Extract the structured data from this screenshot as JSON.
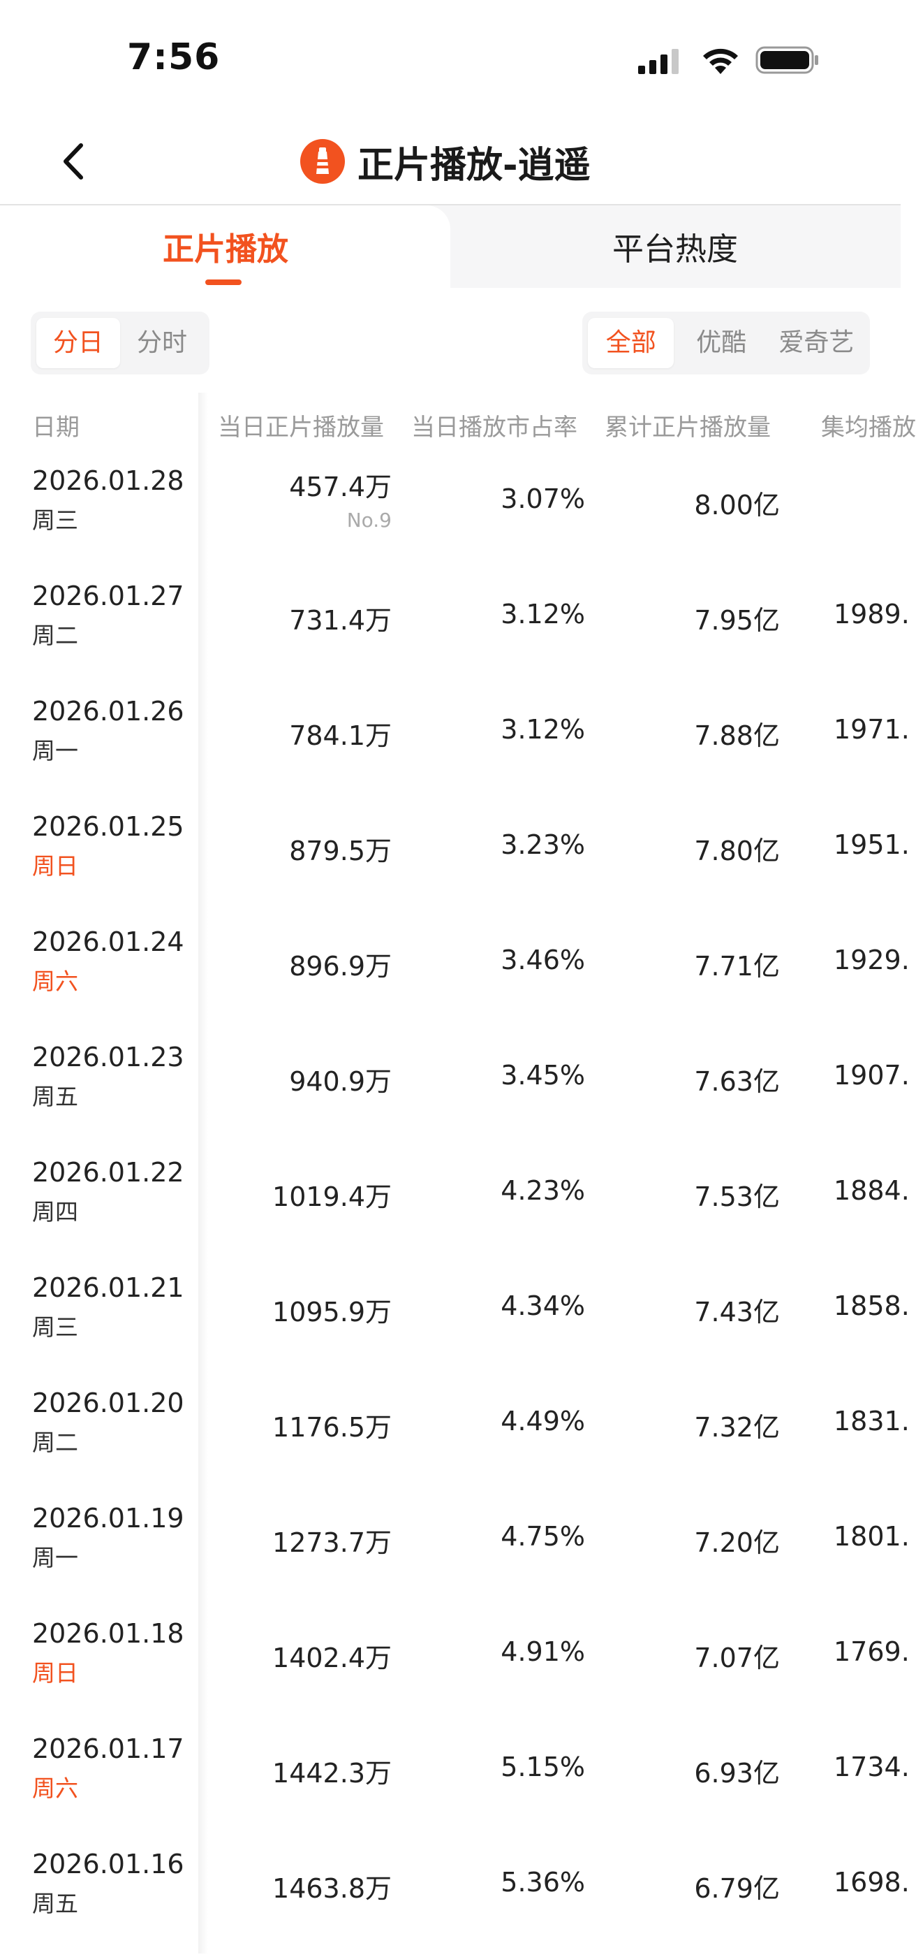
{
  "status_bar": {
    "time": "7:56"
  },
  "nav": {
    "title": "正片播放-逍遥",
    "back_icon": "chevron-left-icon",
    "logo_icon": "lighthouse-logo-icon"
  },
  "tabs": [
    {
      "label": "正片播放",
      "active": true
    },
    {
      "label": "平台热度",
      "active": false
    }
  ],
  "time_filter": [
    {
      "label": "分日",
      "active": true
    },
    {
      "label": "分时",
      "active": false
    }
  ],
  "platform_filter": [
    {
      "label": "全部",
      "active": true
    },
    {
      "label": "优酷",
      "active": false
    },
    {
      "label": "爱奇艺",
      "active": false
    }
  ],
  "colors": {
    "accent": "#f2521f",
    "text": "#222222",
    "muted": "#9a9a9a"
  },
  "table": {
    "headers": [
      "日期",
      "当日正片播放量",
      "当日播放市占率",
      "累计正片播放量",
      "集均播放"
    ],
    "rows": [
      {
        "date": "2026.01.28",
        "weekday": "周三",
        "weekend": false,
        "plays": "457.4万",
        "rank": "No.9",
        "share": "3.07%",
        "total": "8.00亿",
        "avg": ""
      },
      {
        "date": "2026.01.27",
        "weekday": "周二",
        "weekend": false,
        "plays": "731.4万",
        "rank": "",
        "share": "3.12%",
        "total": "7.95亿",
        "avg": "1989."
      },
      {
        "date": "2026.01.26",
        "weekday": "周一",
        "weekend": false,
        "plays": "784.1万",
        "rank": "",
        "share": "3.12%",
        "total": "7.88亿",
        "avg": "1971."
      },
      {
        "date": "2026.01.25",
        "weekday": "周日",
        "weekend": true,
        "plays": "879.5万",
        "rank": "",
        "share": "3.23%",
        "total": "7.80亿",
        "avg": "1951."
      },
      {
        "date": "2026.01.24",
        "weekday": "周六",
        "weekend": true,
        "plays": "896.9万",
        "rank": "",
        "share": "3.46%",
        "total": "7.71亿",
        "avg": "1929."
      },
      {
        "date": "2026.01.23",
        "weekday": "周五",
        "weekend": false,
        "plays": "940.9万",
        "rank": "",
        "share": "3.45%",
        "total": "7.63亿",
        "avg": "1907."
      },
      {
        "date": "2026.01.22",
        "weekday": "周四",
        "weekend": false,
        "plays": "1019.4万",
        "rank": "",
        "share": "4.23%",
        "total": "7.53亿",
        "avg": "1884."
      },
      {
        "date": "2026.01.21",
        "weekday": "周三",
        "weekend": false,
        "plays": "1095.9万",
        "rank": "",
        "share": "4.34%",
        "total": "7.43亿",
        "avg": "1858."
      },
      {
        "date": "2026.01.20",
        "weekday": "周二",
        "weekend": false,
        "plays": "1176.5万",
        "rank": "",
        "share": "4.49%",
        "total": "7.32亿",
        "avg": "1831."
      },
      {
        "date": "2026.01.19",
        "weekday": "周一",
        "weekend": false,
        "plays": "1273.7万",
        "rank": "",
        "share": "4.75%",
        "total": "7.20亿",
        "avg": "1801."
      },
      {
        "date": "2026.01.18",
        "weekday": "周日",
        "weekend": true,
        "plays": "1402.4万",
        "rank": "",
        "share": "4.91%",
        "total": "7.07亿",
        "avg": "1769."
      },
      {
        "date": "2026.01.17",
        "weekday": "周六",
        "weekend": true,
        "plays": "1442.3万",
        "rank": "",
        "share": "5.15%",
        "total": "6.93亿",
        "avg": "1734."
      },
      {
        "date": "2026.01.16",
        "weekday": "周五",
        "weekend": false,
        "plays": "1463.8万",
        "rank": "",
        "share": "5.36%",
        "total": "6.79亿",
        "avg": "1698."
      }
    ]
  }
}
